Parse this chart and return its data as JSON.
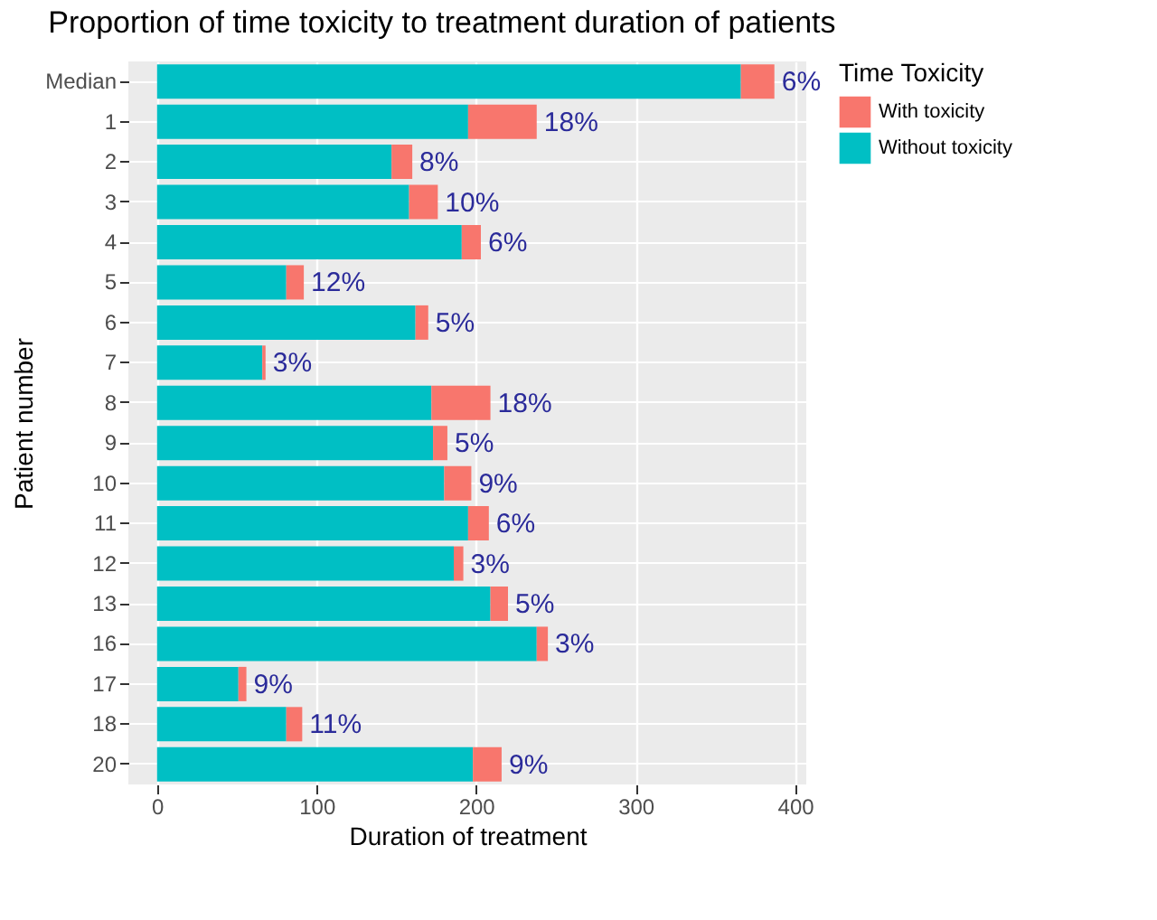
{
  "chart_data": {
    "type": "bar",
    "orientation": "horizontal",
    "stacked": true,
    "title": "Proportion of time toxicity to treatment duration of patients",
    "xlabel": "Duration of treatment",
    "ylabel": "Patient number",
    "legend_title": "Time Toxicity",
    "categories": [
      "Median",
      "1",
      "2",
      "3",
      "4",
      "5",
      "6",
      "7",
      "8",
      "9",
      "10",
      "11",
      "12",
      "13",
      "16",
      "17",
      "18",
      "20"
    ],
    "series": [
      {
        "name": "Without toxicity",
        "color": "#00bfc4",
        "values": [
          366,
          195,
          147,
          158,
          191,
          81,
          162,
          66,
          172,
          173,
          180,
          195,
          186,
          209,
          238,
          51,
          81,
          198
        ]
      },
      {
        "name": "With toxicity",
        "color": "#f8766d",
        "values": [
          21,
          43,
          13,
          18,
          12,
          11,
          8,
          2,
          37,
          9,
          17,
          13,
          6,
          11,
          7,
          5,
          10,
          18
        ]
      }
    ],
    "annotations": [
      {
        "text": "6%",
        "x": 387,
        "y": "Median"
      },
      {
        "text": "18%",
        "x": 238,
        "y": "1"
      },
      {
        "text": "8%",
        "x": 160,
        "y": "2"
      },
      {
        "text": "10%",
        "x": 176,
        "y": "3"
      },
      {
        "text": "6%",
        "x": 203,
        "y": "4"
      },
      {
        "text": "12%",
        "x": 92,
        "y": "5"
      },
      {
        "text": "5%",
        "x": 170,
        "y": "6"
      },
      {
        "text": "3%",
        "x": 68,
        "y": "7"
      },
      {
        "text": "18%",
        "x": 209,
        "y": "8"
      },
      {
        "text": "5%",
        "x": 182,
        "y": "9"
      },
      {
        "text": "9%",
        "x": 197,
        "y": "10"
      },
      {
        "text": "6%",
        "x": 208,
        "y": "11"
      },
      {
        "text": "3%",
        "x": 192,
        "y": "12"
      },
      {
        "text": "5%",
        "x": 220,
        "y": "13"
      },
      {
        "text": "3%",
        "x": 245,
        "y": "16"
      },
      {
        "text": "9%",
        "x": 56,
        "y": "17"
      },
      {
        "text": "11%",
        "x": 91,
        "y": "18"
      },
      {
        "text": "9%",
        "x": 216,
        "y": "20"
      }
    ],
    "xlim": [
      -18,
      407
    ],
    "xticks": [
      0,
      100,
      200,
      300,
      400
    ],
    "grid": true,
    "legend": "right"
  }
}
